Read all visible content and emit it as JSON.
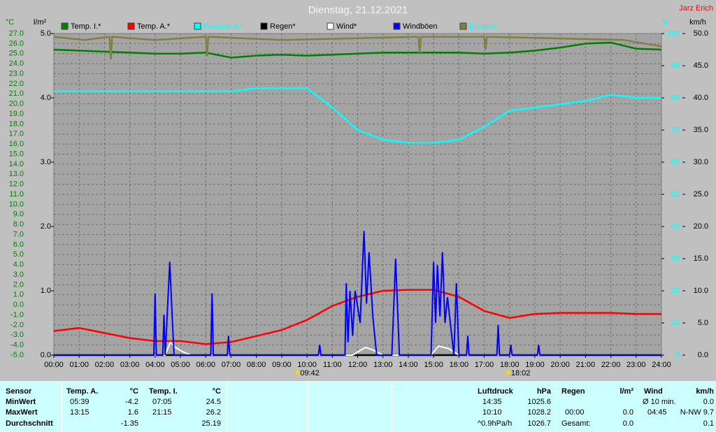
{
  "chart_data": {
    "type": "line",
    "title": "Dienstag, 21.12.2021",
    "author": "Jarz Erich",
    "xlim": [
      0,
      24
    ],
    "xticks": [
      {
        "value": 0,
        "label": "00:00"
      },
      {
        "value": 1,
        "label": "01:00"
      },
      {
        "value": 2,
        "label": "02:00"
      },
      {
        "value": 3,
        "label": "03:00"
      },
      {
        "value": 4,
        "label": "04:00"
      },
      {
        "value": 5,
        "label": "05:00"
      },
      {
        "value": 6,
        "label": "06:00"
      },
      {
        "value": 7,
        "label": "07:00"
      },
      {
        "value": 8,
        "label": "08:00"
      },
      {
        "value": 9,
        "label": "09:00"
      },
      {
        "value": 10,
        "label": "10:00"
      },
      {
        "value": 11,
        "label": "11:00"
      },
      {
        "value": 12,
        "label": "12:00"
      },
      {
        "value": 13,
        "label": "13:00"
      },
      {
        "value": 14,
        "label": "14:00"
      },
      {
        "value": 15,
        "label": "15:00"
      },
      {
        "value": 16,
        "label": "16:00"
      },
      {
        "value": 17,
        "label": "17:00"
      },
      {
        "value": 18,
        "label": "18:00"
      },
      {
        "value": 19,
        "label": "19:00"
      },
      {
        "value": 20,
        "label": "20:00"
      },
      {
        "value": 21,
        "label": "21:00"
      },
      {
        "value": 22,
        "label": "22:00"
      },
      {
        "value": 23,
        "label": "23:00"
      },
      {
        "value": 24,
        "label": "24:00"
      }
    ],
    "grid": true,
    "axes": {
      "y": {
        "label": "°C",
        "color": "#008000",
        "lim": [
          -5,
          27
        ],
        "ticks": [
          {
            "value": 27,
            "label": "27.0"
          },
          {
            "value": 26,
            "label": "26.0"
          },
          {
            "value": 25,
            "label": "25.0"
          },
          {
            "value": 24,
            "label": "24.0"
          },
          {
            "value": 23,
            "label": "23.0"
          },
          {
            "value": 22,
            "label": "22.0"
          },
          {
            "value": 21,
            "label": "21.0"
          },
          {
            "value": 20,
            "label": "20.0"
          },
          {
            "value": 19,
            "label": "19.0"
          },
          {
            "value": 18,
            "label": "18.0"
          },
          {
            "value": 17,
            "label": "17.0"
          },
          {
            "value": 16,
            "label": "16.0"
          },
          {
            "value": 15,
            "label": "15.0"
          },
          {
            "value": 14,
            "label": "14.0"
          },
          {
            "value": 13,
            "label": "13.0"
          },
          {
            "value": 12,
            "label": "12.0"
          },
          {
            "value": 11,
            "label": "11.0"
          },
          {
            "value": 10,
            "label": "10.0"
          },
          {
            "value": 9,
            "label": "9.0"
          },
          {
            "value": 8,
            "label": "8.0"
          },
          {
            "value": 7,
            "label": "7.0"
          },
          {
            "value": 6,
            "label": "6.0"
          },
          {
            "value": 5,
            "label": "5.0"
          },
          {
            "value": 4,
            "label": "4.0"
          },
          {
            "value": 3,
            "label": "3.0"
          },
          {
            "value": 2,
            "label": "2.0"
          },
          {
            "value": 1,
            "label": "1.0"
          },
          {
            "value": 0,
            "label": "0.0"
          },
          {
            "value": -1,
            "label": "-1.0"
          },
          {
            "value": -2,
            "label": "-2.0"
          },
          {
            "value": -3,
            "label": "-3.0"
          },
          {
            "value": -4,
            "label": "-4.0"
          },
          {
            "value": -5,
            "label": "-5.0"
          }
        ]
      },
      "y2": {
        "label": "l/m²",
        "color": "#000000",
        "lim": [
          0,
          5
        ],
        "ticks": [
          {
            "value": 0,
            "label": "0.0"
          },
          {
            "value": 1,
            "label": "1.0"
          },
          {
            "value": 2,
            "label": "2.0"
          },
          {
            "value": 3,
            "label": "3.0"
          },
          {
            "value": 4,
            "label": "4.0"
          },
          {
            "value": 5,
            "label": "5.0"
          }
        ]
      },
      "y3": {
        "label": "%",
        "color": "#00ffff",
        "lim": [
          0,
          100
        ],
        "ticks": [
          0,
          10,
          20,
          30,
          40,
          50,
          60,
          70,
          80,
          90,
          100
        ]
      },
      "y4": {
        "label": "km/h",
        "color": "#000000",
        "lim": [
          0,
          50
        ],
        "ticks": [
          {
            "value": 0,
            "label": "0.0"
          },
          {
            "value": 5,
            "label": "5.0"
          },
          {
            "value": 10,
            "label": "10.0"
          },
          {
            "value": 15,
            "label": "15.0"
          },
          {
            "value": 20,
            "label": "20.0"
          },
          {
            "value": 25,
            "label": "25.0"
          },
          {
            "value": 30,
            "label": "30.0"
          },
          {
            "value": 35,
            "label": "35.0"
          },
          {
            "value": 40,
            "label": "40.0"
          },
          {
            "value": 45,
            "label": "45.0"
          },
          {
            "value": 50,
            "label": "50.0"
          }
        ]
      }
    },
    "series": [
      {
        "name": "Temp. I.*",
        "color": "#008000",
        "axis": "y",
        "x": [
          0,
          1,
          2,
          3,
          4,
          5,
          6,
          7,
          8,
          9,
          10,
          11,
          12,
          13,
          14,
          15,
          16,
          17,
          18,
          19,
          20,
          21,
          22,
          23,
          24
        ],
        "values": [
          25.4,
          25.3,
          25.2,
          25.1,
          25.0,
          25.0,
          25.1,
          24.6,
          24.8,
          24.9,
          24.8,
          24.9,
          25.0,
          25.1,
          25.1,
          25.1,
          25.1,
          25.0,
          25.1,
          25.3,
          25.6,
          26.0,
          26.1,
          25.5,
          25.4
        ]
      },
      {
        "name": "Temp. A.*",
        "color": "#ff0000",
        "axis": "y",
        "x": [
          0,
          1,
          2,
          3,
          4,
          5,
          6,
          7,
          8,
          9,
          10,
          11,
          12,
          13,
          14,
          15,
          16,
          17,
          18,
          19,
          20,
          21,
          22,
          23,
          24
        ],
        "values": [
          -2.6,
          -2.3,
          -2.8,
          -3.3,
          -3.6,
          -3.6,
          -3.9,
          -3.7,
          -3.1,
          -2.5,
          -1.5,
          -0.1,
          0.8,
          1.4,
          1.5,
          1.5,
          0.8,
          -0.6,
          -1.3,
          -0.9,
          -0.8,
          -0.8,
          -0.8,
          -0.9,
          -0.9
        ]
      },
      {
        "name": "Feuchte A.*",
        "color": "#00ffff",
        "axis": "y3",
        "x": [
          0,
          1,
          2,
          3,
          4,
          5,
          6,
          7,
          8,
          9,
          10,
          11,
          12,
          13,
          14,
          15,
          16,
          17,
          18,
          19,
          20,
          21,
          22,
          23,
          24
        ],
        "values": [
          82,
          82,
          82,
          82,
          82,
          82,
          82,
          82,
          83,
          83,
          83,
          77,
          70,
          67,
          66,
          66,
          67,
          71,
          76,
          77,
          78,
          79,
          81,
          80,
          80
        ]
      },
      {
        "name": "Regen*",
        "color": "#000000",
        "axis": "y2",
        "x": [
          0,
          24
        ],
        "values": [
          0,
          0
        ]
      },
      {
        "name": "Wind*",
        "color": "#ffffff",
        "axis": "y4",
        "x": [
          0,
          4.4,
          4.6,
          4.8,
          5.1,
          5.4,
          11.8,
          12.3,
          12.6,
          13.0,
          14.9,
          15.2,
          15.6,
          16.0,
          24
        ],
        "values": [
          0,
          0,
          2.0,
          1.2,
          0.5,
          0,
          0,
          1.2,
          0.8,
          0,
          0,
          1.4,
          1.0,
          0,
          0
        ]
      },
      {
        "name": "Windböen",
        "color": "#0000ff",
        "axis": "y4",
        "x": [
          0,
          3.95,
          4.0,
          4.05,
          4.3,
          4.35,
          4.4,
          4.5,
          4.58,
          4.65,
          4.75,
          6.2,
          6.25,
          6.3,
          6.85,
          6.9,
          6.95,
          10.45,
          10.5,
          10.55,
          11.5,
          11.55,
          11.62,
          11.7,
          11.8,
          11.9,
          12.1,
          12.25,
          12.35,
          12.45,
          12.6,
          12.75,
          13.35,
          13.5,
          13.65,
          14.9,
          15.0,
          15.08,
          15.15,
          15.25,
          15.35,
          15.45,
          15.55,
          15.8,
          15.9,
          16.0,
          16.3,
          16.35,
          16.4,
          17.5,
          17.55,
          17.6,
          18.0,
          18.05,
          18.1,
          19.1,
          19.15,
          19.2,
          24
        ],
        "values": [
          0,
          0,
          9.6,
          0,
          0,
          6.3,
          0,
          8,
          14.5,
          8,
          0,
          0,
          9.6,
          0,
          0,
          3,
          0,
          0,
          1.6,
          0,
          0,
          11.2,
          2,
          10,
          3,
          10,
          5,
          19.3,
          8,
          16,
          6,
          0,
          0,
          15,
          0,
          0,
          14.5,
          5,
          14,
          6,
          16,
          5,
          9,
          0,
          11.2,
          0,
          0,
          3,
          0,
          0,
          4.7,
          0,
          0,
          1.6,
          0,
          0,
          1.6,
          0,
          0
        ]
      },
      {
        "name": "Ereignis",
        "color": "#808040",
        "axis": "y3",
        "x": [
          0,
          1.2,
          2.2,
          2.25,
          2.3,
          4.0,
          6.0,
          6.05,
          6.1,
          9.0,
          14.4,
          14.45,
          14.5,
          17.0,
          17.05,
          17.1,
          22.5,
          24
        ],
        "values": [
          99,
          98,
          99,
          92,
          99,
          98,
          99,
          93,
          99,
          98,
          99,
          94,
          99,
          99,
          95,
          99,
          98,
          96
        ]
      }
    ],
    "annotations": [
      {
        "x": 9.7,
        "label": "09:42"
      },
      {
        "x": 18.03,
        "label": "18:02"
      }
    ]
  },
  "stats": {
    "sensor": {
      "header": "Sensor",
      "rows": [
        "MinWert",
        "MaxWert",
        "Durchschnitt"
      ]
    },
    "temp_a": {
      "header": "Temp. A.",
      "unit": "°C",
      "min_time": "05:39",
      "min": "-4.2",
      "max_time": "13:15",
      "max": "1.6",
      "avg": "-1.35"
    },
    "temp_i": {
      "header": "Temp. I.",
      "unit": "°C",
      "min_time": "07:05",
      "min": "24.5",
      "max_time": "21:15",
      "max": "26.2",
      "avg": "25.19"
    },
    "pressure": {
      "header": "Luftdruck",
      "unit": "hPa",
      "min_time": "14:35",
      "min": "1025.6",
      "max_time": "10:10",
      "max": "1028.2",
      "trend": "^0.9hPa/h",
      "avg": "1026.7"
    },
    "rain": {
      "header": "Regen",
      "unit": "l/m²",
      "max_time": "00:00",
      "max": "0.0",
      "total_label": "Gesamt:",
      "total": "0.0"
    },
    "wind": {
      "header": "Wind",
      "unit": "km/h",
      "avg10_label": "Ø 10 min.",
      "avg10": "0.0",
      "max_time": "04:45",
      "max": "N-NW 9.7",
      "avg": "0.1"
    }
  }
}
